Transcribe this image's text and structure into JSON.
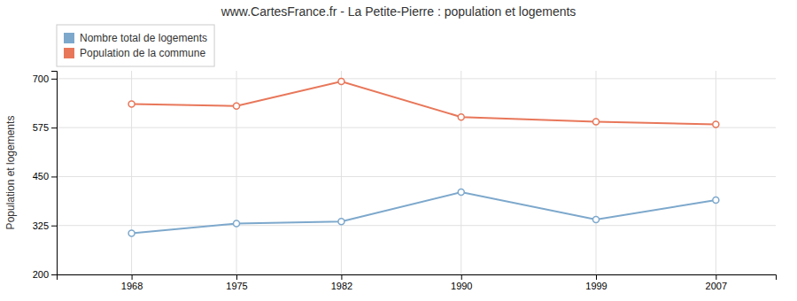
{
  "chart_data": {
    "type": "line",
    "title": "www.CartesFrance.fr - La Petite-Pierre : population et logements",
    "ylabel": "Population et logements",
    "x": [
      1968,
      1975,
      1982,
      1990,
      1999,
      2007
    ],
    "series": [
      {
        "name": "Nombre total de logements",
        "color": "#7da8cc",
        "marker": "circle",
        "values": [
          305,
          330,
          335,
          410,
          340,
          390
        ]
      },
      {
        "name": "Population de la commune",
        "color": "#e8775a",
        "marker": "circle",
        "values": [
          635,
          630,
          693,
          602,
          590,
          583
        ]
      }
    ],
    "xlim": [
      1963,
      2011
    ],
    "xticks": [
      1968,
      1975,
      1982,
      1990,
      1999,
      2007
    ],
    "ylim": [
      200,
      720
    ],
    "yticks": [
      200,
      325,
      450,
      575,
      700
    ],
    "grid": true,
    "legend": "top-left"
  }
}
